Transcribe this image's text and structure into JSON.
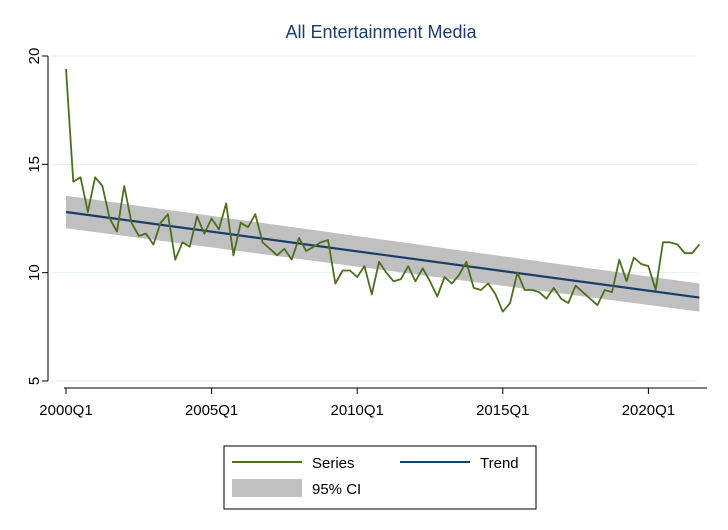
{
  "chart_data": {
    "type": "line",
    "title": "All Entertainment Media",
    "xlabel": "",
    "ylabel": "",
    "ylim": [
      5,
      20
    ],
    "y_ticks": [
      5,
      10,
      15,
      20
    ],
    "x_ticks": [
      "2000Q1",
      "2005Q1",
      "2010Q1",
      "2015Q1",
      "2020Q1"
    ],
    "grid": true,
    "legend_position": "bottom",
    "x": [
      "2000Q1",
      "2000Q2",
      "2000Q3",
      "2000Q4",
      "2001Q1",
      "2001Q2",
      "2001Q3",
      "2001Q4",
      "2002Q1",
      "2002Q2",
      "2002Q3",
      "2002Q4",
      "2003Q1",
      "2003Q2",
      "2003Q3",
      "2003Q4",
      "2004Q1",
      "2004Q2",
      "2004Q3",
      "2004Q4",
      "2005Q1",
      "2005Q2",
      "2005Q3",
      "2005Q4",
      "2006Q1",
      "2006Q2",
      "2006Q3",
      "2006Q4",
      "2007Q1",
      "2007Q2",
      "2007Q3",
      "2007Q4",
      "2008Q1",
      "2008Q2",
      "2008Q3",
      "2008Q4",
      "2009Q1",
      "2009Q2",
      "2009Q3",
      "2009Q4",
      "2010Q1",
      "2010Q2",
      "2010Q3",
      "2010Q4",
      "2011Q1",
      "2011Q2",
      "2011Q3",
      "2011Q4",
      "2012Q1",
      "2012Q2",
      "2012Q3",
      "2012Q4",
      "2013Q1",
      "2013Q2",
      "2013Q3",
      "2013Q4",
      "2014Q1",
      "2014Q2",
      "2014Q3",
      "2014Q4",
      "2015Q1",
      "2015Q2",
      "2015Q3",
      "2015Q4",
      "2016Q1",
      "2016Q2",
      "2016Q3",
      "2016Q4",
      "2017Q1",
      "2017Q2",
      "2017Q3",
      "2017Q4",
      "2018Q1",
      "2018Q2",
      "2018Q3",
      "2018Q4",
      "2019Q1",
      "2019Q2",
      "2019Q3",
      "2019Q4",
      "2020Q1",
      "2020Q2",
      "2020Q3",
      "2020Q4",
      "2021Q1",
      "2021Q2",
      "2021Q3",
      "2021Q4"
    ],
    "series": [
      {
        "name": "Series",
        "color": "#4d6f1f",
        "values": [
          19.4,
          14.2,
          14.4,
          12.8,
          14.4,
          14.0,
          12.5,
          11.9,
          14.0,
          12.3,
          11.7,
          11.8,
          11.3,
          12.3,
          12.7,
          10.6,
          11.4,
          11.2,
          12.6,
          11.8,
          12.5,
          12.0,
          13.2,
          10.8,
          12.3,
          12.1,
          12.7,
          11.4,
          11.1,
          10.8,
          11.1,
          10.6,
          11.6,
          11.0,
          11.2,
          11.4,
          11.5,
          9.5,
          10.1,
          10.1,
          9.8,
          10.3,
          9.0,
          10.5,
          10.0,
          9.6,
          9.7,
          10.3,
          9.6,
          10.2,
          9.6,
          8.9,
          9.8,
          9.5,
          9.9,
          10.5,
          9.3,
          9.2,
          9.5,
          9.0,
          8.2,
          8.6,
          10.0,
          9.2,
          9.2,
          9.1,
          8.8,
          9.3,
          8.8,
          8.6,
          9.4,
          9.1,
          8.8,
          8.5,
          9.2,
          9.1,
          10.6,
          9.6,
          10.7,
          10.4,
          10.3,
          9.2,
          11.4,
          11.4,
          11.3,
          10.9,
          10.9,
          11.3
        ]
      },
      {
        "name": "Trend",
        "color": "#1a3e66",
        "start": 12.8,
        "end": 8.85
      }
    ],
    "ci": {
      "name": "95% CI",
      "color": "#c0c0c0",
      "start_half_width": 0.75,
      "end_half_width": 0.65
    }
  }
}
